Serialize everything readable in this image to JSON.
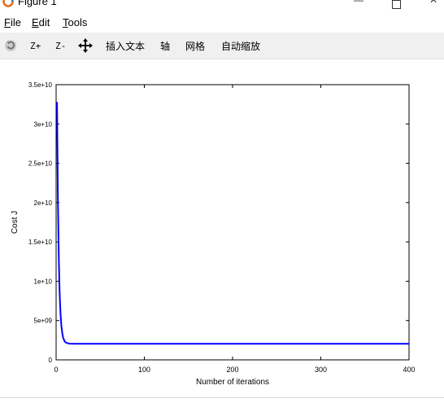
{
  "window": {
    "title": "Figure 1",
    "minimize_icon": "minimize-icon",
    "maximize_icon": "maximize-icon",
    "close_icon": "close-icon"
  },
  "menubar": {
    "file_ul": "F",
    "file_rest": "ile",
    "edit_ul": "E",
    "edit_rest": "dit",
    "tools_ul": "T",
    "tools_rest": "ools"
  },
  "toolbar": {
    "zoom_in": "Z+",
    "zoom_out": "Z-",
    "insert_text": "插入文本",
    "axis": "轴",
    "grid": "网格",
    "autoscale": "自动缩放"
  },
  "chart_data": {
    "type": "line",
    "xlabel": "Number of iterations",
    "ylabel": "Cost J",
    "xlim": [
      0,
      400
    ],
    "ylim": [
      0,
      35000000000.0
    ],
    "x_ticks": [
      0,
      100,
      200,
      300,
      400
    ],
    "x_tick_labels": [
      "0",
      "100",
      "200",
      "300",
      "400"
    ],
    "y_ticks": [
      0,
      5000000000.0,
      10000000000.0,
      15000000000.0,
      20000000000.0,
      25000000000.0,
      30000000000.0,
      35000000000.0
    ],
    "y_tick_labels": [
      "0",
      "5e+09",
      "1e+10",
      "1.5e+10",
      "2e+10",
      "2.5e+10",
      "3e+10",
      "3.5e+10"
    ],
    "grid": false,
    "series": [
      {
        "color": "#0000ff",
        "x": [
          1,
          2,
          3,
          4,
          5,
          6,
          7,
          8,
          10,
          12,
          15,
          20,
          30,
          50,
          100,
          200,
          300,
          400
        ],
        "y": [
          32800000000.0,
          20500000000.0,
          13000000000.0,
          8600000000.0,
          5900000000.0,
          4300000000.0,
          3400000000.0,
          2800000000.0,
          2300000000.0,
          2150000000.0,
          2060000000.0,
          2040000000.0,
          2040000000.0,
          2040000000.0,
          2040000000.0,
          2040000000.0,
          2040000000.0,
          2040000000.0
        ]
      }
    ],
    "colors": {
      "line": "#0000ff"
    }
  }
}
